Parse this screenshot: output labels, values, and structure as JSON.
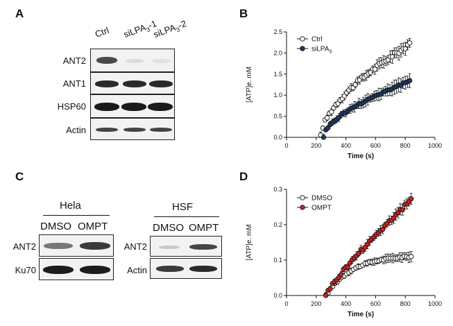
{
  "panels": {
    "a": {
      "letter": "A",
      "lanes": [
        "Ctrl",
        "siLPA3-1",
        "siLPA3-2"
      ],
      "lane_parts": [
        {
          "base": "Ctrl",
          "sub": "",
          "suffix": ""
        },
        {
          "base": "siLPA",
          "sub": "3",
          "suffix": "-1"
        },
        {
          "base": "siLPA",
          "sub": "3",
          "suffix": "-2"
        }
      ],
      "rows": [
        "ANT2",
        "ANT1",
        "HSP60",
        "Actin"
      ]
    },
    "b": {
      "letter": "B",
      "chart_data": {
        "type": "scatter",
        "xlabel": "Time (s)",
        "ylabel": "[ATP]e. mM",
        "xlim": [
          0,
          1000
        ],
        "ylim": [
          0,
          2.5
        ],
        "xticks": [
          0,
          200,
          400,
          600,
          800,
          1000
        ],
        "yticks": [
          0.0,
          0.5,
          1.0,
          1.5,
          2.0,
          2.5
        ],
        "ytick_labels": [
          "0.0",
          "0.5",
          "1.0",
          "1.5",
          "2.0",
          "2.5"
        ],
        "series": [
          {
            "name": "Ctrl",
            "legend_parts": {
              "base": "Ctrl",
              "sub": ""
            },
            "marker": "open",
            "color": "#000000",
            "x_start": 230,
            "x_end": 830,
            "count": 42,
            "y_start": 0.02,
            "y_end": 2.2,
            "shape": "sqrt",
            "err": 0.14
          },
          {
            "name": "siLPA3",
            "legend_parts": {
              "base": "siLPA",
              "sub": "3"
            },
            "marker": "filled",
            "color": "#1f3a66",
            "x_start": 250,
            "x_end": 830,
            "count": 40,
            "y_start": 0.02,
            "y_end": 1.33,
            "shape": "sqrt",
            "err": 0.16
          }
        ]
      }
    },
    "c": {
      "letter": "C",
      "hela": {
        "title": "Hela",
        "lanes": [
          "DMSO",
          "OMPT"
        ],
        "rows": [
          "ANT2",
          "Ku70"
        ]
      },
      "hsf": {
        "title": "HSF",
        "lanes": [
          "DMSO",
          "OMPT"
        ],
        "rows": [
          "ANT2",
          "Actin"
        ]
      }
    },
    "d": {
      "letter": "D",
      "chart_data": {
        "type": "scatter",
        "xlabel": "Time (s)",
        "ylabel": "[ATP]e. mM",
        "xlim": [
          0,
          1000
        ],
        "ylim": [
          0,
          0.3
        ],
        "xticks": [
          0,
          200,
          400,
          600,
          800,
          1000
        ],
        "yticks": [
          0.0,
          0.1,
          0.2,
          0.3
        ],
        "ytick_labels": [
          "0.0",
          "0.1",
          "0.2",
          "0.3"
        ],
        "series": [
          {
            "name": "DMSO",
            "legend_parts": {
              "base": "DMSO",
              "sub": ""
            },
            "marker": "open",
            "color": "#000000",
            "x_start": 265,
            "x_end": 840,
            "count": 38,
            "y_start": 0.0,
            "y_end": 0.115,
            "shape": "plateau",
            "err": 0.012
          },
          {
            "name": "OMPT",
            "legend_parts": {
              "base": "OMPT",
              "sub": ""
            },
            "marker": "filled",
            "color": "#cc2222",
            "x_start": 265,
            "x_end": 840,
            "count": 40,
            "y_start": 0.0,
            "y_end": 0.27,
            "shape": "linearish",
            "err": 0.015
          }
        ]
      }
    }
  }
}
